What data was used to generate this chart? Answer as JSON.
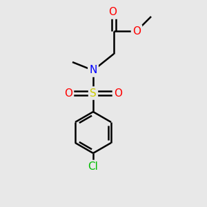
{
  "bg_color": "#e8e8e8",
  "atom_colors": {
    "C": "#000000",
    "O": "#ff0000",
    "N": "#0000ff",
    "S": "#cccc00",
    "Cl": "#00bb00"
  },
  "bond_color": "#000000",
  "bond_width": 1.8,
  "figsize": [
    3.0,
    3.0
  ],
  "dpi": 100
}
